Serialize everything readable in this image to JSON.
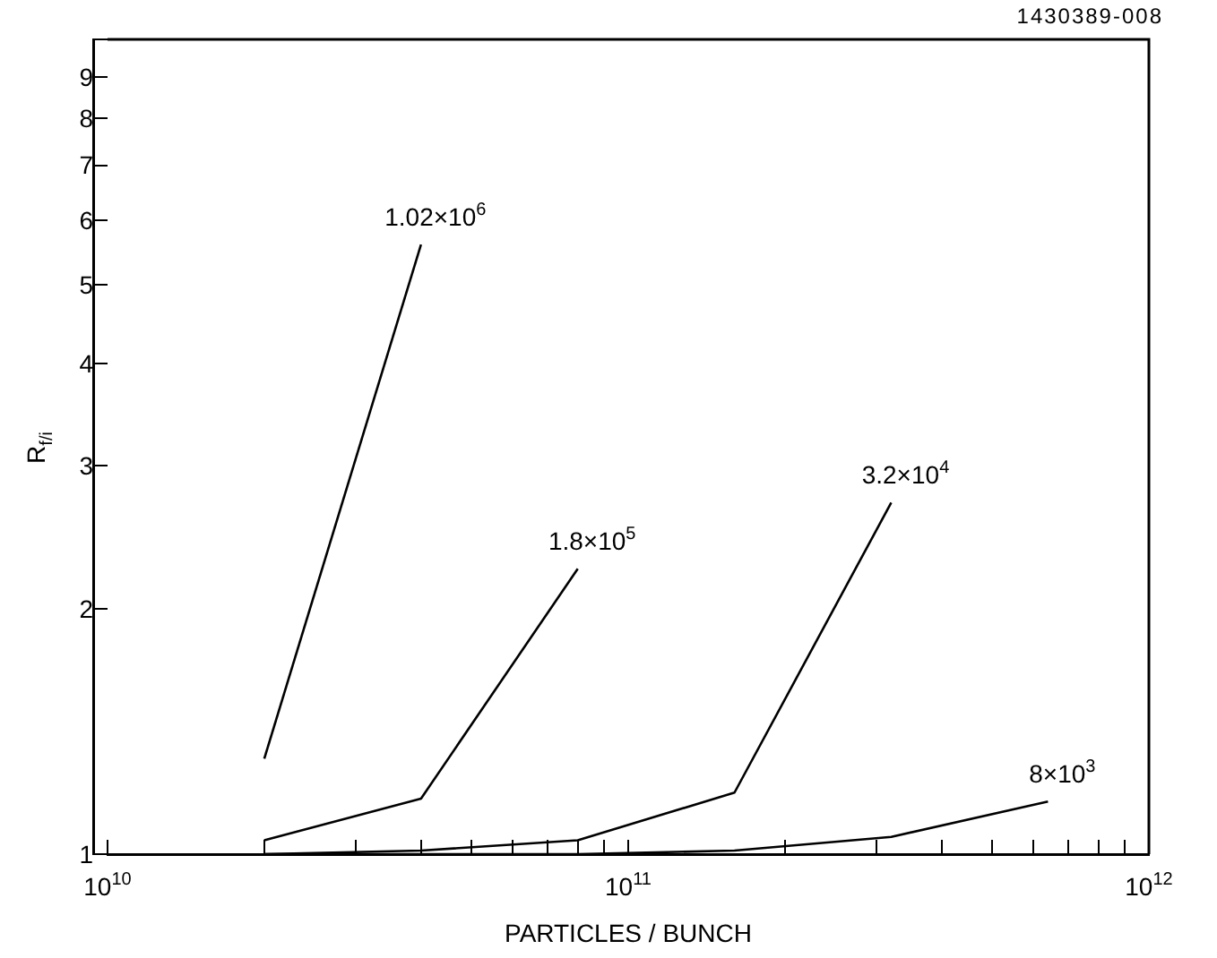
{
  "chart_data": {
    "type": "line",
    "xlabel": "PARTICLES / BUNCH",
    "ylabel": "R$_{f/i}$",
    "log": "xy",
    "grid": false,
    "legend": false,
    "marker": "none",
    "line_style": "solid",
    "xlim": [
      10000000000.0,
      1000000000000.0
    ],
    "ylim": [
      1,
      10
    ],
    "xticks": [
      {
        "value": 10000000000.0,
        "label": "10$^{10}$"
      },
      {
        "value": 20000000000.0,
        "label": null
      },
      {
        "value": 30000000000.0,
        "label": null
      },
      {
        "value": 40000000000.0,
        "label": null
      },
      {
        "value": 50000000000.0,
        "label": null
      },
      {
        "value": 60000000000.0,
        "label": null
      },
      {
        "value": 70000000000.0,
        "label": null
      },
      {
        "value": 80000000000.0,
        "label": null
      },
      {
        "value": 90000000000.0,
        "label": null
      },
      {
        "value": 100000000000.0,
        "label": "10$^{11}$"
      },
      {
        "value": 200000000000.0,
        "label": null
      },
      {
        "value": 300000000000.0,
        "label": null
      },
      {
        "value": 400000000000.0,
        "label": null
      },
      {
        "value": 500000000000.0,
        "label": null
      },
      {
        "value": 600000000000.0,
        "label": null
      },
      {
        "value": 700000000000.0,
        "label": null
      },
      {
        "value": 800000000000.0,
        "label": null
      },
      {
        "value": 900000000000.0,
        "label": null
      },
      {
        "value": 1000000000000.0,
        "label": "10$^{12}$"
      }
    ],
    "yticks": [
      1,
      2,
      3,
      4,
      5,
      6,
      7,
      8,
      9,
      {
        "value": 10,
        "label": null
      }
    ],
    "annotations": [
      "1430389-008"
    ],
    "series": [
      {
        "name": "1.02×10$^{6}$",
        "color": "#000000",
        "x": [
          20000000000.0,
          40000000000.0
        ],
        "values": [
          1.31,
          5.6
        ]
      },
      {
        "name": "1.8×10$^{5}$",
        "color": "#000000",
        "x": [
          20000000000.0,
          40000000000.0,
          80000000000.0
        ],
        "values": [
          1.04,
          1.17,
          2.24
        ]
      },
      {
        "name": "3.2×10$^{4}$",
        "color": "#000000",
        "x": [
          20000000000.0,
          40000000000.0,
          80000000000.0,
          160000000000.0,
          320000000000.0
        ],
        "values": [
          1.0,
          1.01,
          1.04,
          1.19,
          2.7
        ]
      },
      {
        "name": "8×10$^{3}$",
        "color": "#000000",
        "x": [
          20000000000.0,
          40000000000.0,
          80000000000.0,
          160000000000.0,
          320000000000.0,
          640000000000.0
        ],
        "values": [
          1.0,
          1.0,
          1.0,
          1.01,
          1.05,
          1.16
        ]
      }
    ]
  }
}
